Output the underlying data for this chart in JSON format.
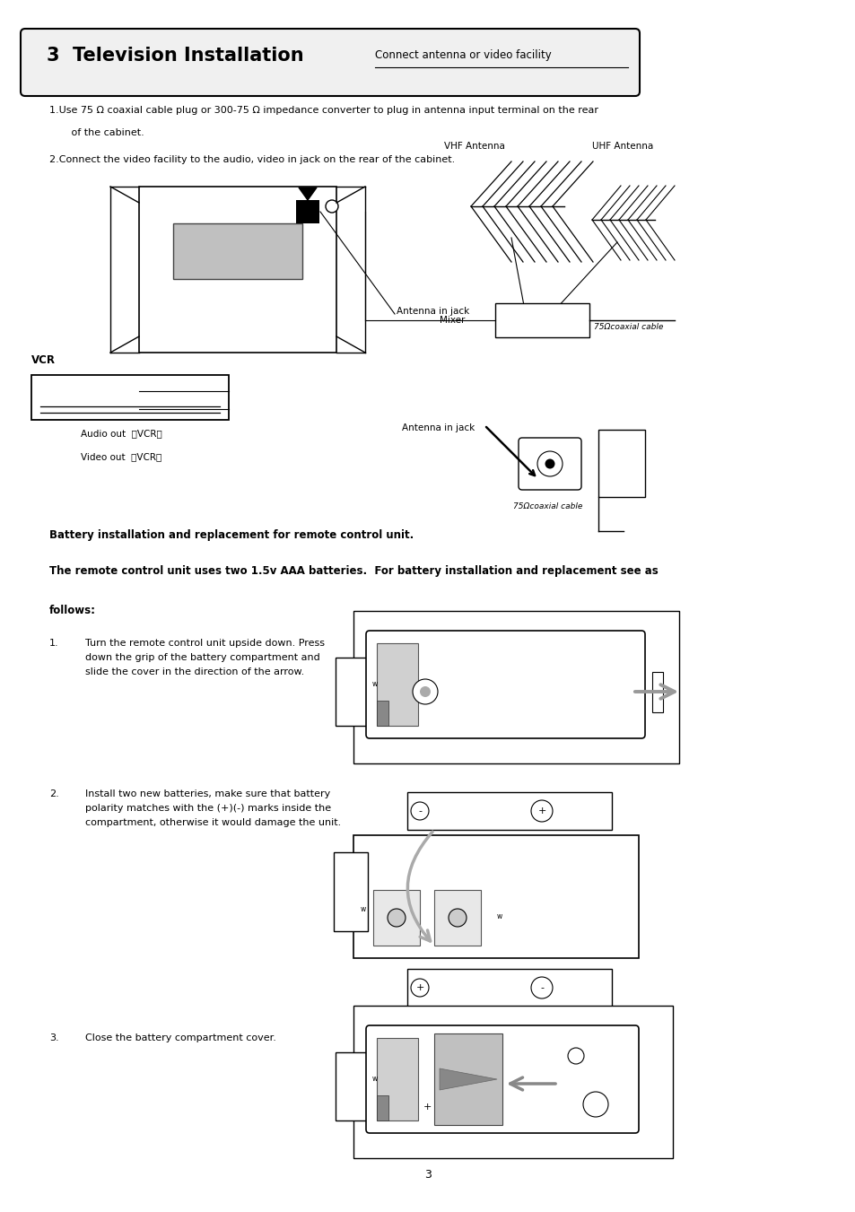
{
  "bg_color": "#ffffff",
  "page_width": 9.54,
  "page_height": 13.51,
  "header_title_bold": "3  Television Installation",
  "header_subtitle": "Connect antenna or video facility",
  "para1": "1.Use 75 Ω coaxial cable plug or 300-75 Ω impedance converter to plug in antenna input terminal on the rear",
  "para1b": "       of the cabinet.",
  "para2": "2.Connect the video facility to the audio, video in jack on the rear of the cabinet.",
  "label_vhf": "VHF Antenna",
  "label_uhf": "UHF Antenna",
  "label_mixer": "Mixer",
  "label_antenna_in1": "Antenna in jack",
  "label_75ohm_coax1": "75Ωcoaxial cable",
  "label_vcr": "VCR",
  "label_audio_out": "Audio out  （VCR）",
  "label_video_out": "Video out  （VCR）",
  "label_antenna_in2": "Antenna in jack",
  "label_75ohm_coax2": "75Ωcoaxial cable",
  "battery_bold1": "Battery installation and replacement for remote control unit.",
  "battery_bold2": "The remote control unit uses two 1.5v AAA batteries.  For battery installation and replacement see as",
  "battery_bold3": "follows:",
  "step1_num": "1.",
  "step1_text": "Turn the remote control unit upside down. Press\ndown the grip of the battery compartment and\nslide the cover in the direction of the arrow.",
  "step2_num": "2.",
  "step2_text": "Install two new batteries, make sure that battery\npolarity matches with the (+)(-) marks inside the\ncompartment, otherwise it would damage the unit.",
  "step3_num": "3.",
  "step3_text": "Close the battery compartment cover.",
  "page_num": "3"
}
